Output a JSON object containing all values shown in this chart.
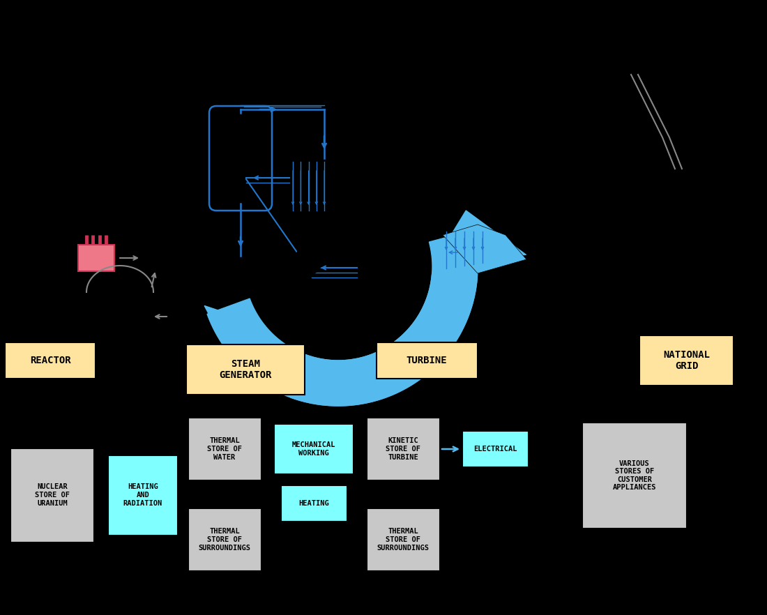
{
  "bg_color": "#000000",
  "box_orange": "#FFE4A0",
  "box_cyan": "#7FFFFF",
  "box_gray": "#C8C8C8",
  "arrow_blue": "#2277CC",
  "arrow_cyan_fill": "#55BBEE",
  "arrow_gray": "#888888",
  "labels": {
    "reactor": "REACTOR",
    "steam_gen": "STEAM\nGENERATOR",
    "turbine": "TURBINE",
    "national_grid": "NATIONAL\nGRID",
    "nuclear_store": "NUCLEAR\nSTORE OF\nURANIUM",
    "heating_radiation": "HEATING\nAND\nRADIATION",
    "thermal_water": "THERMAL\nSTORE OF\nWATER",
    "mechanical_working": "MECHANICAL\nWORKING",
    "heating": "HEATING",
    "kinetic_turbine": "KINETIC\nSTORE OF\nTURBINE",
    "electrical": "ELECTRICAL",
    "thermal_surr1": "THERMAL\nSTORE OF\nSURROUNDINGS",
    "thermal_surr2": "THERMAL\nSTORE OF\nSURROUNDINGS",
    "various_stores": "VARIOUS\nSTORES OF\nCUSTOMER\nAPPLIANCES"
  }
}
